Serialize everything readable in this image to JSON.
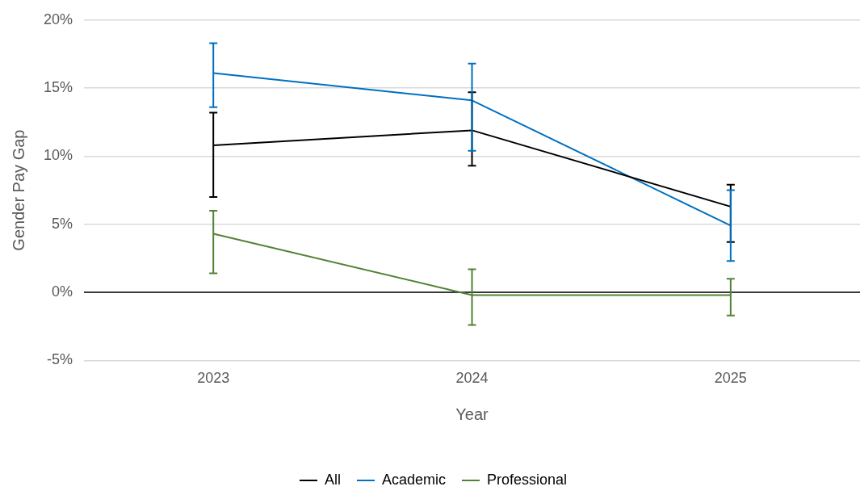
{
  "chart_data": {
    "type": "line",
    "xlabel": "Year",
    "ylabel": "Gender Pay Gap",
    "categories": [
      "2023",
      "2024",
      "2025"
    ],
    "series": [
      {
        "name": "All",
        "color": "#000000",
        "values": [
          10.8,
          11.9,
          6.3
        ],
        "errors": [
          [
            7.0,
            13.2
          ],
          [
            9.3,
            14.7
          ],
          [
            3.7,
            7.9
          ]
        ]
      },
      {
        "name": "Academic",
        "color": "#0070c0",
        "values": [
          16.1,
          14.1,
          4.9
        ],
        "errors": [
          [
            13.6,
            18.3
          ],
          [
            10.4,
            16.8
          ],
          [
            2.3,
            7.5
          ]
        ]
      },
      {
        "name": "Professional",
        "color": "#548235",
        "values": [
          4.3,
          -0.2,
          -0.2
        ],
        "errors": [
          [
            1.4,
            6.0
          ],
          [
            -2.4,
            1.7
          ],
          [
            -1.7,
            1.0
          ]
        ]
      }
    ],
    "ylim": [
      -5,
      20
    ],
    "yticks": [
      {
        "value": -5,
        "label": "-5%"
      },
      {
        "value": 0,
        "label": "0%"
      },
      {
        "value": 5,
        "label": "5%"
      },
      {
        "value": 10,
        "label": "10%"
      },
      {
        "value": 15,
        "label": "15%"
      },
      {
        "value": 20,
        "label": "20%"
      }
    ],
    "ref_lines": [
      {
        "axis": "y",
        "value": 0,
        "color": "#000000"
      }
    ],
    "grid": "y",
    "legend": "bottom",
    "marker": "none",
    "line_style": "solid"
  }
}
